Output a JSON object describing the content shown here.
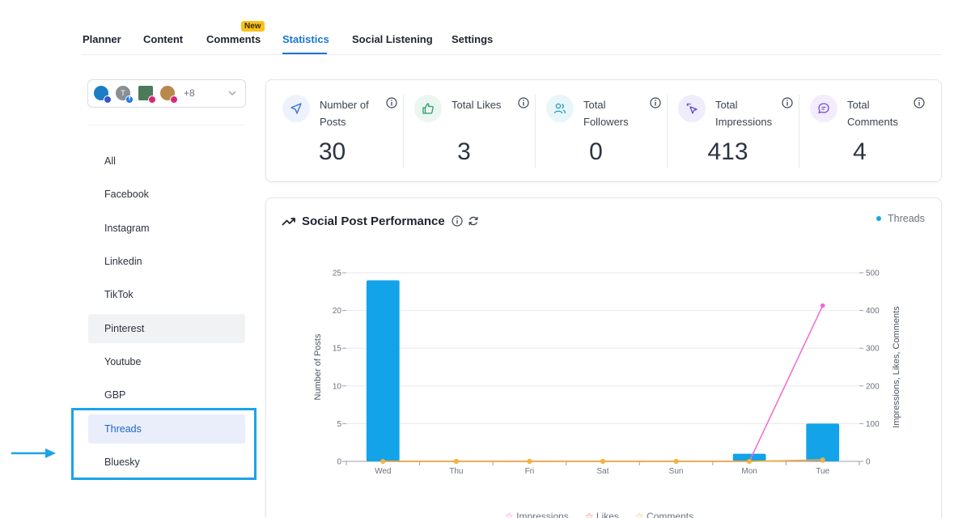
{
  "tabs": [
    {
      "label": "Planner"
    },
    {
      "label": "Content"
    },
    {
      "label": "Comments"
    },
    {
      "label": "Statistics"
    },
    {
      "label": "Social Listening"
    },
    {
      "label": "Settings"
    }
  ],
  "active_tab": "Statistics",
  "comments_badge": "New",
  "account_selector": {
    "more_count": "+8"
  },
  "sidebar": {
    "items": [
      {
        "label": "All"
      },
      {
        "label": "Facebook"
      },
      {
        "label": "Instagram"
      },
      {
        "label": "Linkedin"
      },
      {
        "label": "TikTok"
      },
      {
        "label": "Pinterest"
      },
      {
        "label": "Youtube"
      },
      {
        "label": "GBP"
      },
      {
        "label": "Threads"
      },
      {
        "label": "Bluesky"
      }
    ],
    "selected": "Threads"
  },
  "stats": [
    {
      "label": "Number of Posts",
      "value": "30",
      "icon": "send-icon",
      "color": "#3b6fd8"
    },
    {
      "label": "Total Likes",
      "value": "3",
      "icon": "thumbs-up-icon",
      "color": "#2a9d6a"
    },
    {
      "label": "Total Followers",
      "value": "0",
      "icon": "users-icon",
      "color": "#1b9bb8"
    },
    {
      "label": "Total Impressions",
      "value": "413",
      "icon": "cursor-click-icon",
      "color": "#5a49d6"
    },
    {
      "label": "Total Comments",
      "value": "4",
      "icon": "message-icon",
      "color": "#7a4fd0"
    }
  ],
  "colors": {
    "accent": "#1976d2",
    "bar": "#12a3e8",
    "impressions": "#f06ad0",
    "likes": "#e0645a",
    "comments": "#f2b53a",
    "highlight": "#1ba3e8"
  },
  "performance": {
    "title": "Social Post Performance"
  },
  "chart_data": {
    "type": "bar",
    "categories": [
      "Wed",
      "Thu",
      "Fri",
      "Sat",
      "Sun",
      "Mon",
      "Tue"
    ],
    "series": [
      {
        "name": "Threads",
        "type": "bar",
        "axis": "left",
        "values": [
          24,
          0,
          0,
          0,
          0,
          1,
          5
        ]
      },
      {
        "name": "Impressions",
        "type": "line",
        "axis": "right",
        "values": [
          0,
          0,
          0,
          0,
          0,
          0,
          413
        ]
      },
      {
        "name": "Likes",
        "type": "line",
        "axis": "right",
        "values": [
          0,
          0,
          0,
          0,
          0,
          0,
          3
        ]
      },
      {
        "name": "Comments",
        "type": "line",
        "axis": "right",
        "values": [
          0,
          0,
          0,
          0,
          0,
          0,
          4
        ]
      }
    ],
    "ylabel": "Number of Posts",
    "y2label": "Impressions, Likes, Comments",
    "ylim": [
      0,
      25
    ],
    "y2lim": [
      0,
      500
    ],
    "yticks": [
      "0",
      "5",
      "10",
      "15",
      "20",
      "25"
    ],
    "y2ticks": [
      "0",
      "100",
      "200",
      "300",
      "400",
      "500"
    ],
    "grid": true,
    "legend": "top-right"
  }
}
